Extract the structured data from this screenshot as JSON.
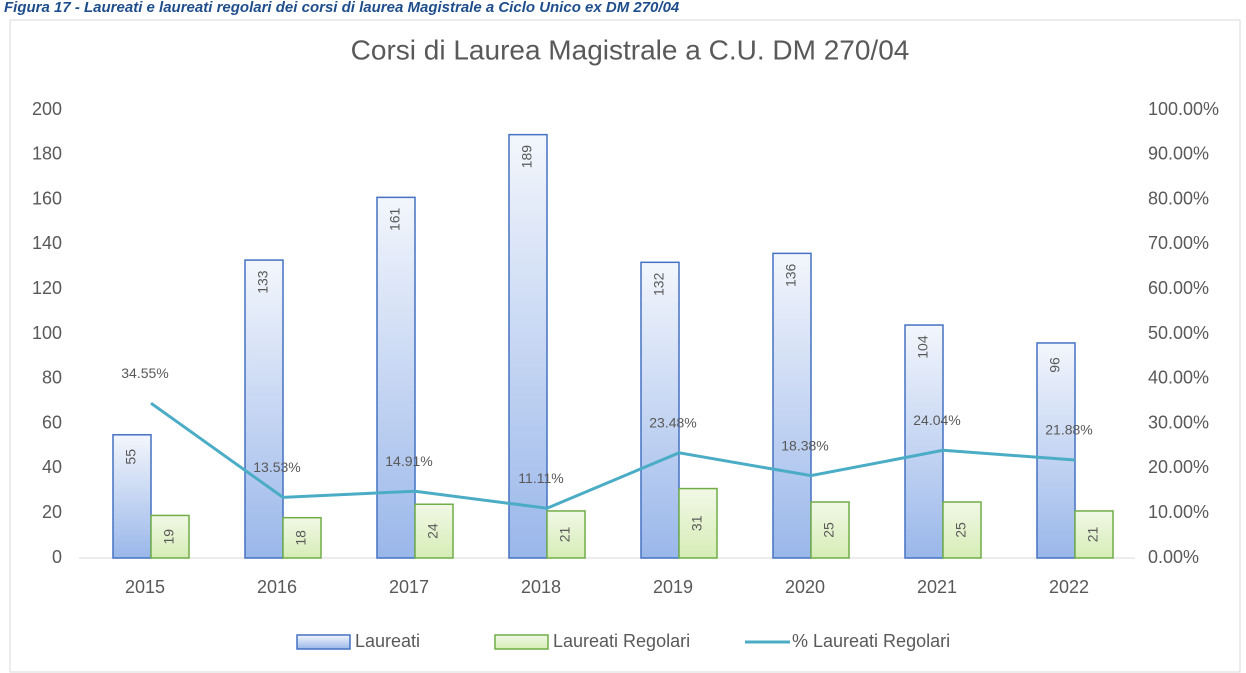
{
  "caption": "Figura 17 - Laureati e laureati regolari dei corsi di laurea Magistrale a Ciclo Unico ex DM 270/04",
  "chart_data": {
    "type": "bar",
    "title": "Corsi di Laurea Magistrale a C.U. DM 270/04",
    "categories": [
      "2015",
      "2016",
      "2017",
      "2018",
      "2019",
      "2020",
      "2021",
      "2022"
    ],
    "series": [
      {
        "name": "Laureati",
        "color": "#4472c4",
        "values": [
          55,
          133,
          161,
          189,
          132,
          136,
          104,
          96
        ]
      },
      {
        "name": "Laureati Regolari",
        "color": "#70ad47",
        "values": [
          19,
          18,
          24,
          21,
          31,
          25,
          25,
          21
        ]
      },
      {
        "name": "% Laureati Regolari",
        "type": "line",
        "axis": "y2",
        "color": "#4bacc6",
        "values": [
          34.55,
          13.53,
          14.91,
          11.11,
          23.48,
          18.38,
          24.04,
          21.88
        ],
        "value_labels": [
          "34.55%",
          "13.53%",
          "14.91%",
          "11.11%",
          "23.48%",
          "18.38%",
          "24.04%",
          "21.88%"
        ]
      }
    ],
    "ylim": [
      0,
      200
    ],
    "yticks": [
      0,
      20,
      40,
      60,
      80,
      100,
      120,
      140,
      160,
      180,
      200
    ],
    "y2lim": [
      0,
      100
    ],
    "y2ticks": [
      {
        "value": 0,
        "label": "0.00%"
      },
      {
        "value": 10,
        "label": "10.00%"
      },
      {
        "value": 20,
        "label": "20.00%"
      },
      {
        "value": 30,
        "label": "30.00%"
      },
      {
        "value": 40,
        "label": "40.00%"
      },
      {
        "value": 50,
        "label": "50.00%"
      },
      {
        "value": 60,
        "label": "60.00%"
      },
      {
        "value": 70,
        "label": "70.00%"
      },
      {
        "value": 80,
        "label": "80.00%"
      },
      {
        "value": 90,
        "label": "90.00%"
      },
      {
        "value": 100,
        "label": "100.00%"
      }
    ],
    "grid": false,
    "legend": "bottom"
  }
}
